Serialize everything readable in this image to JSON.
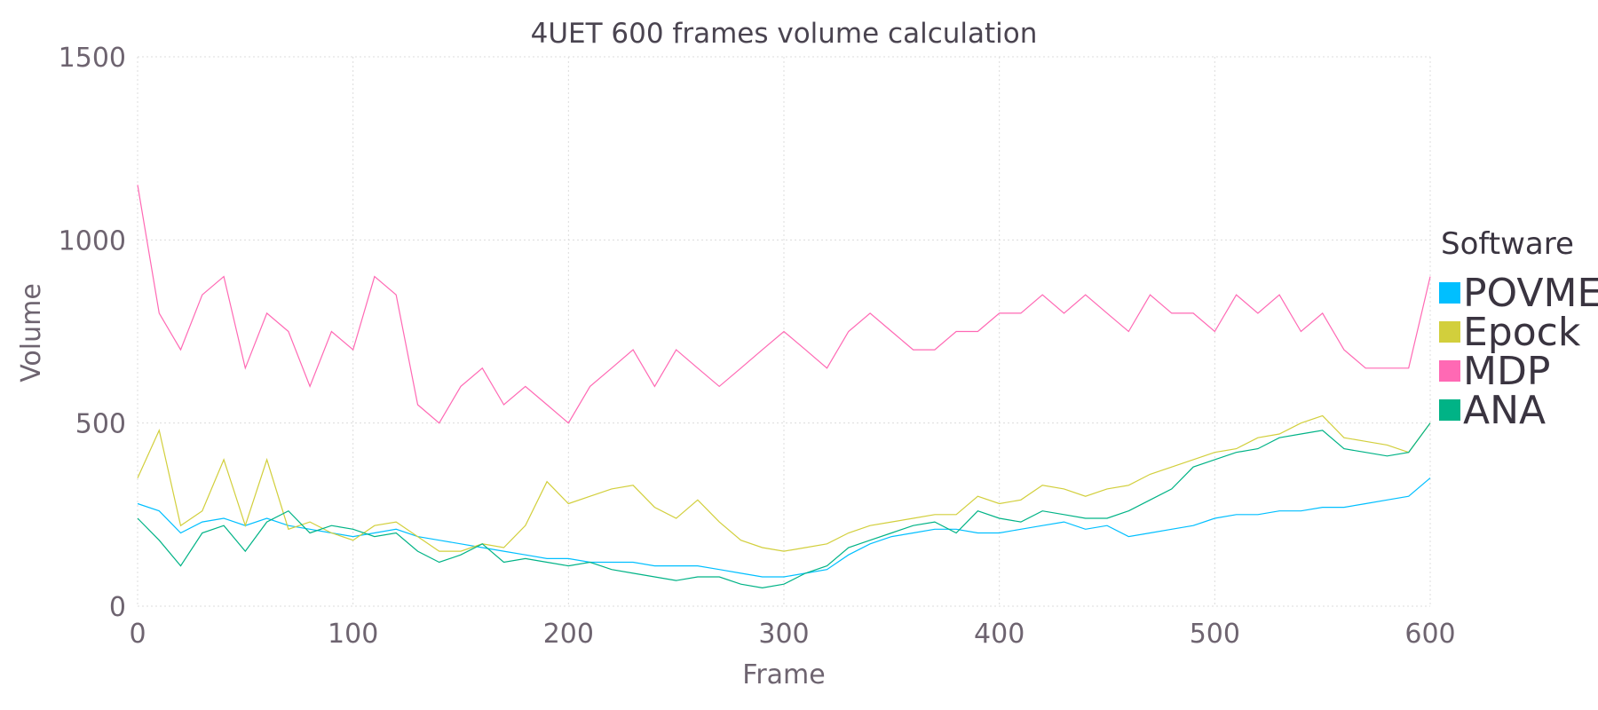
{
  "chart_data": {
    "type": "line",
    "title": "4UET 600 frames volume calculation",
    "xlabel": "Frame",
    "ylabel": "Volume",
    "xlim": [
      0,
      600
    ],
    "ylim": [
      0,
      1500
    ],
    "xticks": [
      0,
      100,
      200,
      300,
      400,
      500,
      600
    ],
    "yticks": [
      0,
      500,
      1000,
      1500
    ],
    "grid": true,
    "legend": {
      "title": "Software",
      "position": "right"
    },
    "x": [
      0,
      10,
      20,
      30,
      40,
      50,
      60,
      70,
      80,
      90,
      100,
      110,
      120,
      130,
      140,
      150,
      160,
      170,
      180,
      190,
      200,
      210,
      220,
      230,
      240,
      250,
      260,
      270,
      280,
      290,
      300,
      310,
      320,
      330,
      340,
      350,
      360,
      370,
      380,
      390,
      400,
      410,
      420,
      430,
      440,
      450,
      460,
      470,
      480,
      490,
      500,
      510,
      520,
      530,
      540,
      550,
      560,
      570,
      580,
      590,
      600
    ],
    "series": [
      {
        "name": "POVME",
        "color": "#00bfff",
        "values": [
          280,
          260,
          200,
          230,
          240,
          220,
          240,
          220,
          210,
          200,
          190,
          200,
          210,
          190,
          180,
          170,
          160,
          150,
          140,
          130,
          130,
          120,
          120,
          120,
          110,
          110,
          110,
          100,
          90,
          80,
          80,
          90,
          100,
          140,
          170,
          190,
          200,
          210,
          210,
          200,
          200,
          210,
          220,
          230,
          210,
          220,
          190,
          200,
          210,
          220,
          240,
          250,
          250,
          260,
          260,
          270,
          270,
          280,
          290,
          300,
          350
        ]
      },
      {
        "name": "Epock",
        "color": "#d2cf3c",
        "values": [
          350,
          480,
          220,
          260,
          400,
          220,
          400,
          210,
          230,
          200,
          180,
          220,
          230,
          190,
          150,
          150,
          170,
          160,
          220,
          340,
          280,
          300,
          320,
          330,
          270,
          240,
          290,
          230,
          180,
          160,
          150,
          160,
          170,
          200,
          220,
          230,
          240,
          250,
          250,
          300,
          280,
          290,
          330,
          320,
          300,
          320,
          330,
          360,
          380,
          400,
          420,
          430,
          460,
          470,
          500,
          520,
          460,
          450,
          440,
          420,
          500
        ]
      },
      {
        "name": "MDP",
        "color": "#ff69b4",
        "values": [
          1150,
          800,
          700,
          850,
          900,
          650,
          800,
          750,
          600,
          750,
          700,
          900,
          850,
          550,
          500,
          600,
          650,
          550,
          600,
          550,
          500,
          600,
          650,
          700,
          600,
          700,
          650,
          600,
          650,
          700,
          750,
          700,
          650,
          750,
          800,
          750,
          700,
          700,
          750,
          750,
          800,
          800,
          850,
          800,
          850,
          800,
          750,
          850,
          800,
          800,
          750,
          850,
          800,
          850,
          750,
          800,
          700,
          650,
          650,
          650,
          900
        ]
      },
      {
        "name": "ANA",
        "color": "#00b386",
        "values": [
          240,
          180,
          110,
          200,
          220,
          150,
          230,
          260,
          200,
          220,
          210,
          190,
          200,
          150,
          120,
          140,
          170,
          120,
          130,
          120,
          110,
          120,
          100,
          90,
          80,
          70,
          80,
          80,
          60,
          50,
          60,
          90,
          110,
          160,
          180,
          200,
          220,
          230,
          200,
          260,
          240,
          230,
          260,
          250,
          240,
          240,
          260,
          290,
          320,
          380,
          400,
          420,
          430,
          460,
          470,
          480,
          430,
          420,
          410,
          420,
          500
        ]
      }
    ]
  }
}
